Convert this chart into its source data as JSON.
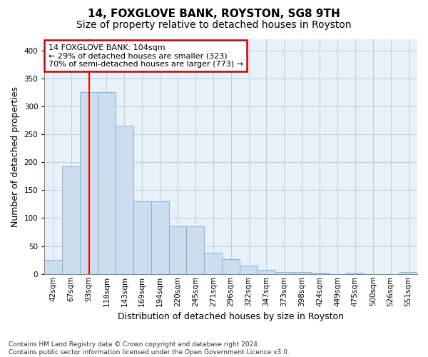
{
  "title": "14, FOXGLOVE BANK, ROYSTON, SG8 9TH",
  "subtitle": "Size of property relative to detached houses in Royston",
  "xlabel": "Distribution of detached houses by size in Royston",
  "ylabel": "Number of detached properties",
  "categories": [
    "42sqm",
    "67sqm",
    "93sqm",
    "118sqm",
    "143sqm",
    "169sqm",
    "194sqm",
    "220sqm",
    "245sqm",
    "271sqm",
    "296sqm",
    "322sqm",
    "347sqm",
    "373sqm",
    "398sqm",
    "424sqm",
    "449sqm",
    "475sqm",
    "500sqm",
    "526sqm",
    "551sqm"
  ],
  "values": [
    25,
    192,
    325,
    325,
    265,
    130,
    130,
    85,
    85,
    38,
    27,
    15,
    8,
    4,
    4,
    2,
    0,
    2,
    0,
    0,
    3
  ],
  "bar_color": "#ccdded",
  "bar_edge_color": "#7aaed4",
  "red_line_x": 2.0,
  "annotation_text": "14 FOXGLOVE BANK: 104sqm\n← 29% of detached houses are smaller (323)\n70% of semi-detached houses are larger (773) →",
  "annotation_box_color": "#ffffff",
  "annotation_box_edge_color": "#cc0000",
  "footnote_line1": "Contains HM Land Registry data © Crown copyright and database right 2024.",
  "footnote_line2": "Contains public sector information licensed under the Open Government Licence v3.0.",
  "background_color": "#ffffff",
  "plot_bg_color": "#e8f0f8",
  "grid_color": "#b8cfe0",
  "title_fontsize": 11,
  "subtitle_fontsize": 10,
  "axis_label_fontsize": 9,
  "tick_fontsize": 7.5,
  "annotation_fontsize": 8,
  "footnote_fontsize": 6.5,
  "ylim": [
    0,
    420
  ]
}
